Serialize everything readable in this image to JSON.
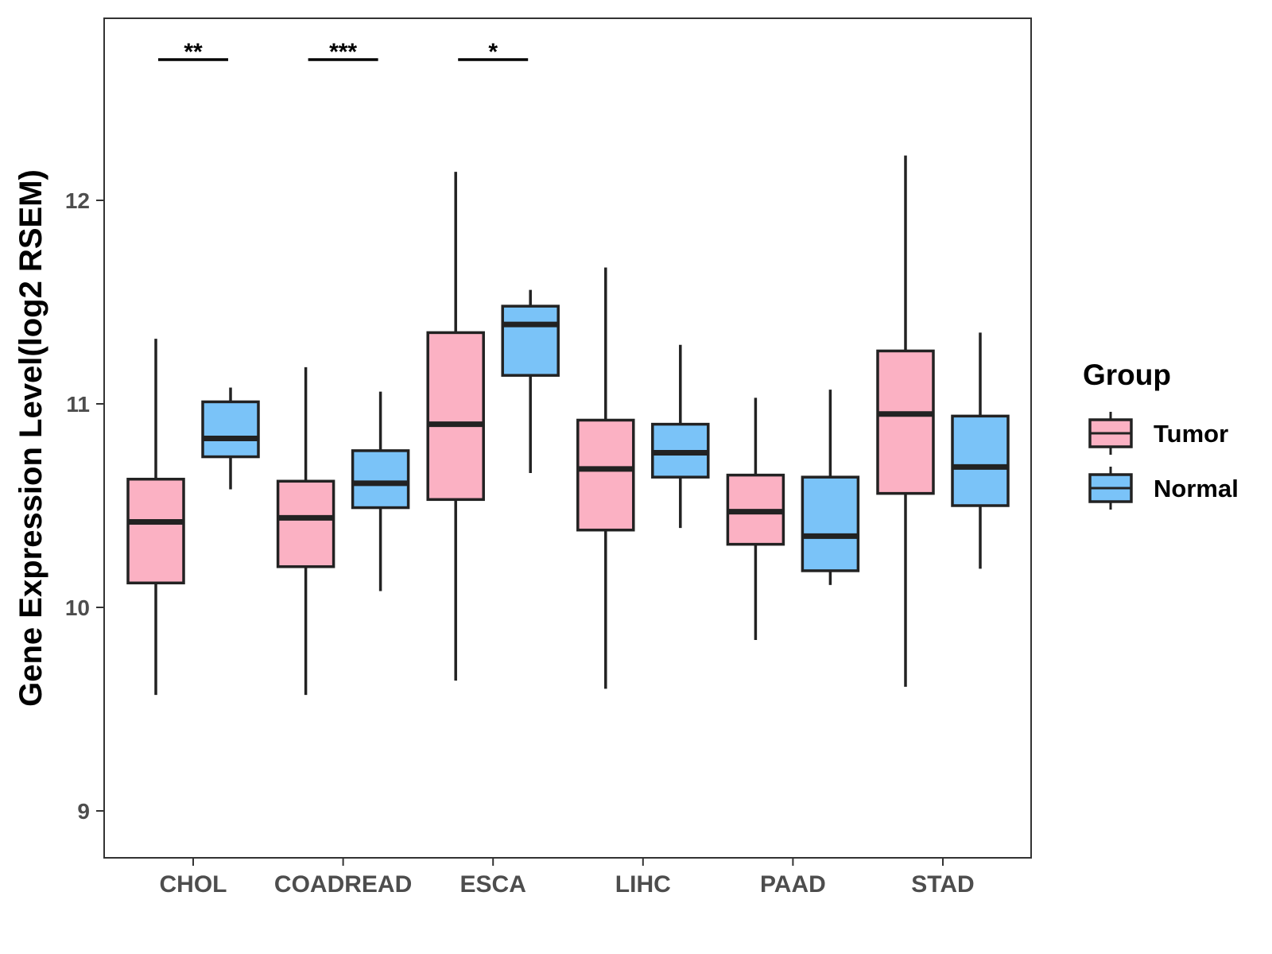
{
  "chart_data": {
    "type": "boxplot",
    "title": "",
    "xlabel": "",
    "ylabel": "Gene Expression Level(log2 RSEM)",
    "ylim": [
      8.78,
      12.9
    ],
    "yticks": [
      9,
      10,
      11,
      12
    ],
    "grid": false,
    "legend": {
      "title": "Group",
      "position": "right",
      "entries": [
        {
          "name": "Tumor",
          "color": "#FBB1C3"
        },
        {
          "name": "Normal",
          "color": "#7AC3F8"
        }
      ]
    },
    "categories": [
      "CHOL",
      "COADREAD",
      "ESCA",
      "LIHC",
      "PAAD",
      "STAD"
    ],
    "series": [
      {
        "name": "Tumor",
        "color": "#FBB1C3",
        "boxes": [
          {
            "min": 9.57,
            "q1": 10.12,
            "median": 10.42,
            "q3": 10.63,
            "max": 11.32
          },
          {
            "min": 9.57,
            "q1": 10.2,
            "median": 10.44,
            "q3": 10.62,
            "max": 11.18
          },
          {
            "min": 9.64,
            "q1": 10.53,
            "median": 10.9,
            "q3": 11.35,
            "max": 12.14
          },
          {
            "min": 9.6,
            "q1": 10.38,
            "median": 10.68,
            "q3": 10.92,
            "max": 11.67
          },
          {
            "min": 9.84,
            "q1": 10.31,
            "median": 10.47,
            "q3": 10.65,
            "max": 11.03
          },
          {
            "min": 9.61,
            "q1": 10.56,
            "median": 10.95,
            "q3": 11.26,
            "max": 12.22
          }
        ]
      },
      {
        "name": "Normal",
        "color": "#7AC3F8",
        "boxes": [
          {
            "min": 10.58,
            "q1": 10.74,
            "median": 10.83,
            "q3": 11.01,
            "max": 11.08
          },
          {
            "min": 10.08,
            "q1": 10.49,
            "median": 10.61,
            "q3": 10.77,
            "max": 11.06
          },
          {
            "min": 10.66,
            "q1": 11.14,
            "median": 11.39,
            "q3": 11.48,
            "max": 11.56
          },
          {
            "min": 10.39,
            "q1": 10.64,
            "median": 10.76,
            "q3": 10.9,
            "max": 11.29
          },
          {
            "min": 10.11,
            "q1": 10.18,
            "median": 10.35,
            "q3": 10.64,
            "max": 11.07
          },
          {
            "min": 10.19,
            "q1": 10.5,
            "median": 10.69,
            "q3": 10.94,
            "max": 11.35
          }
        ]
      }
    ],
    "annotations": [
      {
        "category": "CHOL",
        "label": "**"
      },
      {
        "category": "COADREAD",
        "label": "***"
      },
      {
        "category": "ESCA",
        "label": "*"
      }
    ]
  }
}
